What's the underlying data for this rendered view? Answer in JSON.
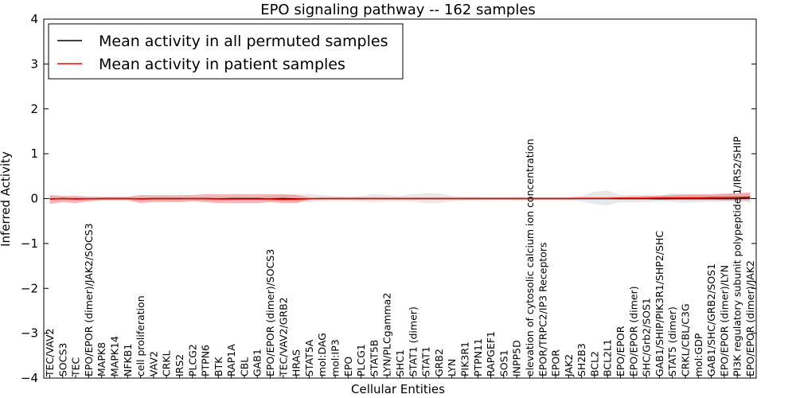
{
  "chart_data": {
    "type": "line",
    "title": "EPO signaling pathway -- 162 samples",
    "xlabel": "Cellular Entities",
    "ylabel": "Inferred Activity",
    "ylim": [
      -4,
      4
    ],
    "yticks": [
      -4,
      -3,
      -2,
      -1,
      0,
      1,
      2,
      3,
      4
    ],
    "yticklabels": [
      "−4",
      "−3",
      "−2",
      "−1",
      "0",
      "1",
      "2",
      "3",
      "4"
    ],
    "legend_position": "top-left",
    "categories": [
      "TEC/VAV2",
      "SOCS3",
      "TEC",
      "EPO/EPOR (dimer)/JAK2/SOCS3",
      "MAPK8",
      "MAPK14",
      "NFKB1",
      "cell proliferation",
      "VAV2",
      "CRKL",
      "IRS2",
      "PLCG2",
      "PTPN6",
      "BTK",
      "RAP1A",
      "CBL",
      "GAB1",
      "EPO/EPOR (dimer)/SOCS3",
      "TEC/VAV2/GRB2",
      "HRAS",
      "STAT5A",
      "mol:DAG",
      "mol:IP3",
      "EPO",
      "PLCG1",
      "STAT5B",
      "LYN/PLCgamma2",
      "SHC1",
      "STAT1 (dimer)",
      "STAT1",
      "GRB2",
      "LYN",
      "PIK3R1",
      "PTPN11",
      "RAPGEF1",
      "SOS1",
      "INPP5D",
      "elevation of cytosolic calcium ion concentration",
      "EPOR/TRPC2/IP3 Receptors",
      "EPOR",
      "JAK2",
      "SH2B3",
      "BCL2",
      "BCL2L1",
      "EPO/EPOR",
      "EPO/EPOR (dimer)",
      "SHC/Grb2/SOS1",
      "GAB1/SHIP/PIK3R1/SHP2/SHC",
      "STAT5 (dimer)",
      "CRKL/CBL/C3G",
      "mol:GDP",
      "GAB1/SHC/GRB2/SOS1",
      "EPO/EPOR (dimer)/LYN",
      "PI3K regulatory subunit polypeptide 1/IRS2/SHIP",
      "EPO/EPOR (dimer)/JAK2"
    ],
    "series": [
      {
        "name": "Mean activity in all permuted samples",
        "color": "#000000",
        "values": [
          -0.01,
          0.0,
          -0.005,
          -0.005,
          0.0,
          0.0,
          0.0,
          -0.005,
          0.0,
          0.0,
          0.0,
          0.0,
          0.0,
          -0.005,
          0.0,
          0.0,
          0.0,
          -0.005,
          0.0,
          -0.005,
          -0.005,
          0.0,
          0.0,
          0.0,
          0.0,
          0.0,
          0.0,
          0.0,
          0.0,
          0.0,
          0.0,
          0.0,
          0.0,
          0.0,
          0.0,
          0.0,
          0.0,
          0.0,
          0.0,
          0.0,
          0.0,
          0.0,
          0.0,
          0.0,
          0.0,
          0.0,
          0.0,
          -0.005,
          0.0,
          0.0,
          0.0,
          0.0,
          0.0,
          0.0,
          0.01
        ],
        "lower": [
          -0.05,
          -0.03,
          -0.04,
          -0.03,
          -0.02,
          -0.02,
          -0.02,
          -0.04,
          -0.03,
          -0.03,
          -0.03,
          -0.02,
          -0.03,
          -0.05,
          -0.04,
          -0.03,
          -0.03,
          -0.05,
          -0.06,
          -0.08,
          -0.08,
          -0.06,
          -0.05,
          -0.05,
          -0.06,
          -0.08,
          -0.06,
          -0.06,
          -0.07,
          -0.1,
          -0.1,
          -0.06,
          -0.04,
          -0.04,
          -0.03,
          -0.03,
          -0.04,
          -0.03,
          -0.03,
          -0.03,
          -0.04,
          -0.06,
          -0.12,
          -0.15,
          -0.08,
          -0.08,
          -0.08,
          -0.06,
          -0.07,
          -0.09,
          -0.08,
          -0.07,
          -0.07,
          -0.06,
          -0.08
        ],
        "upper": [
          0.05,
          0.03,
          0.04,
          0.03,
          0.02,
          0.02,
          0.02,
          0.04,
          0.03,
          0.03,
          0.03,
          0.02,
          0.03,
          0.05,
          0.04,
          0.03,
          0.03,
          0.06,
          0.08,
          0.1,
          0.1,
          0.08,
          0.06,
          0.05,
          0.06,
          0.1,
          0.08,
          0.06,
          0.1,
          0.12,
          0.12,
          0.06,
          0.04,
          0.04,
          0.03,
          0.03,
          0.04,
          0.03,
          0.03,
          0.03,
          0.04,
          0.06,
          0.15,
          0.18,
          0.08,
          0.08,
          0.08,
          0.06,
          0.12,
          0.1,
          0.08,
          0.08,
          0.1,
          0.1,
          0.12
        ]
      },
      {
        "name": "Mean activity in patient samples",
        "color": "#ff0000",
        "values": [
          -0.01,
          0.0,
          -0.01,
          -0.005,
          0.0,
          0.0,
          0.0,
          -0.01,
          -0.005,
          -0.005,
          -0.005,
          0.0,
          -0.005,
          -0.01,
          -0.01,
          -0.01,
          -0.01,
          -0.01,
          -0.02,
          -0.015,
          -0.005,
          0.0,
          0.0,
          0.0,
          0.0,
          0.0,
          0.0,
          0.0,
          0.0,
          0.0,
          0.0,
          0.0,
          0.0,
          0.0,
          0.0,
          0.0,
          0.0,
          0.0,
          0.0,
          0.0,
          0.0,
          0.005,
          0.005,
          0.005,
          0.01,
          0.01,
          0.01,
          0.02,
          0.02,
          0.02,
          0.02,
          0.025,
          0.025,
          0.03,
          0.035
        ],
        "lower": [
          -0.12,
          -0.08,
          -0.1,
          -0.06,
          -0.04,
          -0.04,
          -0.04,
          -0.1,
          -0.08,
          -0.08,
          -0.08,
          -0.06,
          -0.08,
          -0.1,
          -0.1,
          -0.1,
          -0.1,
          -0.08,
          -0.1,
          -0.1,
          -0.02,
          -0.01,
          -0.01,
          -0.01,
          -0.01,
          -0.01,
          -0.01,
          -0.01,
          -0.01,
          -0.01,
          -0.01,
          -0.01,
          -0.01,
          -0.01,
          -0.01,
          -0.01,
          -0.01,
          -0.01,
          -0.01,
          -0.01,
          -0.01,
          -0.01,
          -0.01,
          -0.01,
          -0.02,
          -0.02,
          -0.02,
          -0.02,
          -0.03,
          -0.03,
          -0.03,
          -0.03,
          -0.04,
          -0.04,
          -0.04
        ],
        "upper": [
          0.08,
          0.06,
          0.06,
          0.05,
          0.04,
          0.04,
          0.04,
          0.08,
          0.08,
          0.08,
          0.08,
          0.08,
          0.1,
          0.1,
          0.1,
          0.1,
          0.1,
          0.1,
          0.1,
          0.08,
          0.03,
          0.02,
          0.02,
          0.02,
          0.02,
          0.02,
          0.02,
          0.02,
          0.02,
          0.02,
          0.02,
          0.02,
          0.02,
          0.02,
          0.02,
          0.02,
          0.02,
          0.02,
          0.02,
          0.02,
          0.02,
          0.03,
          0.03,
          0.03,
          0.04,
          0.05,
          0.06,
          0.07,
          0.08,
          0.09,
          0.1,
          0.1,
          0.11,
          0.12,
          0.14
        ]
      }
    ]
  }
}
